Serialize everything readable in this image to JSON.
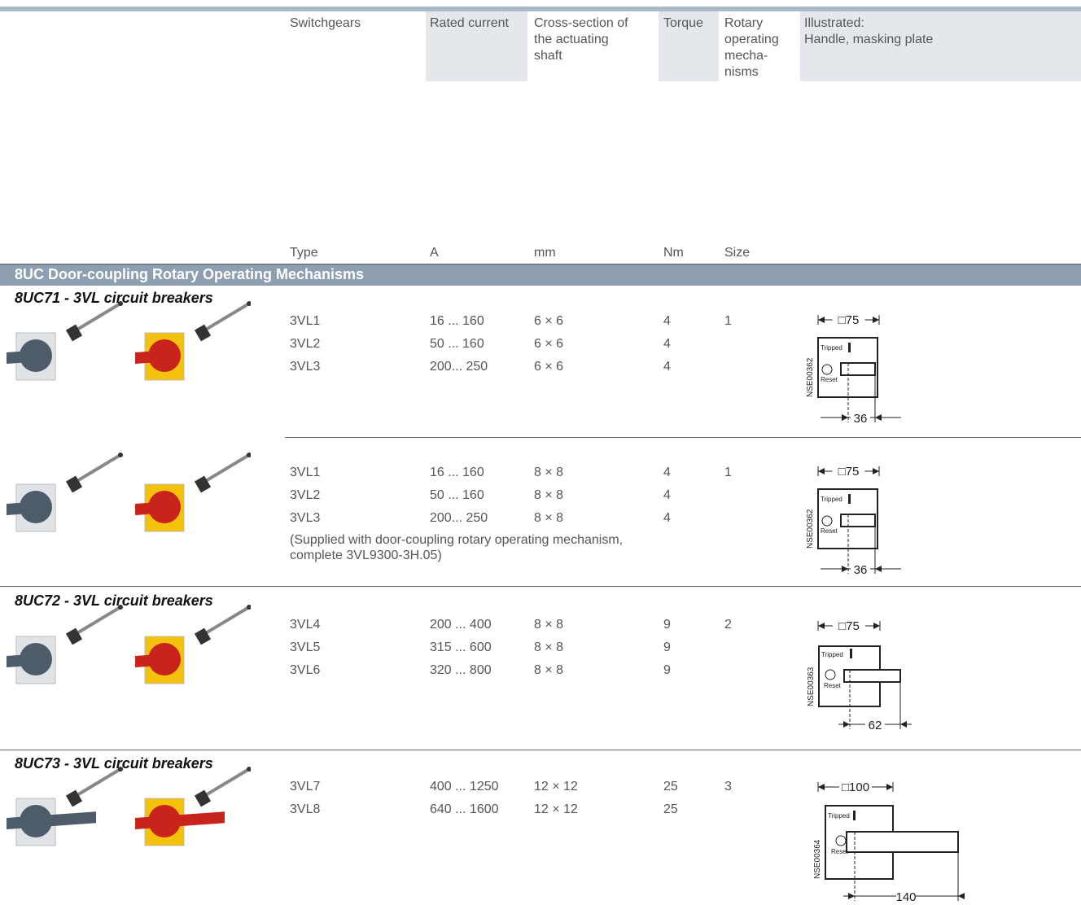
{
  "header": {
    "columns": [
      [
        "Switchgears"
      ],
      [
        "Rated current"
      ],
      [
        "Cross-section of",
        "the actuating",
        "shaft"
      ],
      [
        "Torque"
      ],
      [
        "Rotary",
        "operating",
        "mecha-",
        "nisms"
      ],
      [
        "Illustrated:",
        "Handle, masking plate"
      ]
    ],
    "units": [
      "Type",
      "A",
      "mm",
      "Nm",
      "Size"
    ]
  },
  "section_title": "8UC Door-coupling Rotary Operating Mechanisms",
  "groups": [
    {
      "title": "8UC71 - 3VL circuit breakers",
      "blocks": [
        {
          "rows": [
            {
              "type": "3VL1",
              "current": "16 ... 160",
              "shaft": "6 × 6",
              "torque": "4",
              "size": "1"
            },
            {
              "type": "3VL2",
              "current": "50 ... 160",
              "shaft": "6 × 6",
              "torque": "4"
            },
            {
              "type": "3VL3",
              "current": "200... 250",
              "shaft": "6 × 6",
              "torque": "4"
            }
          ],
          "drawing": {
            "code": "NSE00362",
            "width": "□75",
            "offset": "36",
            "tripped": "Tripped",
            "reset": "Reset"
          }
        },
        {
          "rows": [
            {
              "type": "3VL1",
              "current": "16 ... 160",
              "shaft": "8 × 8",
              "torque": "4",
              "size": "1"
            },
            {
              "type": "3VL2",
              "current": "50 ... 160",
              "shaft": "8 × 8",
              "torque": "4"
            },
            {
              "type": "3VL3",
              "current": "200... 250",
              "shaft": "8 × 8",
              "torque": "4"
            }
          ],
          "note": [
            "(Supplied with door-coupling rotary operating mechanism,",
            "complete 3VL9300-3H.05)"
          ],
          "drawing": {
            "code": "NSE00362",
            "width": "□75",
            "offset": "36",
            "tripped": "Tripped",
            "reset": "Reset"
          }
        }
      ]
    },
    {
      "title": "8UC72 - 3VL circuit breakers",
      "blocks": [
        {
          "rows": [
            {
              "type": "3VL4",
              "current": "200 ... 400",
              "shaft": "8 × 8",
              "torque": "9",
              "size": "2"
            },
            {
              "type": "3VL5",
              "current": "315 ... 600",
              "shaft": "8 × 8",
              "torque": "9"
            },
            {
              "type": "3VL6",
              "current": "320 ... 800",
              "shaft": "8 × 8",
              "torque": "9"
            }
          ],
          "drawing": {
            "code": "NSE00363",
            "width": "□75",
            "offset": "62",
            "tripped": "Tripped",
            "reset": "Reset"
          }
        }
      ]
    },
    {
      "title": "8UC73 - 3VL circuit breakers",
      "blocks": [
        {
          "rows": [
            {
              "type": "3VL7",
              "current": "400 ... 1250",
              "shaft": "12 × 12",
              "torque": "25",
              "size": "3"
            },
            {
              "type": "3VL8",
              "current": "640 ... 1600",
              "shaft": "12 × 12",
              "torque": "25"
            }
          ],
          "drawing": {
            "code": "NSE00364",
            "width": "□100",
            "offset": "140",
            "tripped": "Tripped",
            "reset": "Reset"
          }
        }
      ]
    }
  ]
}
